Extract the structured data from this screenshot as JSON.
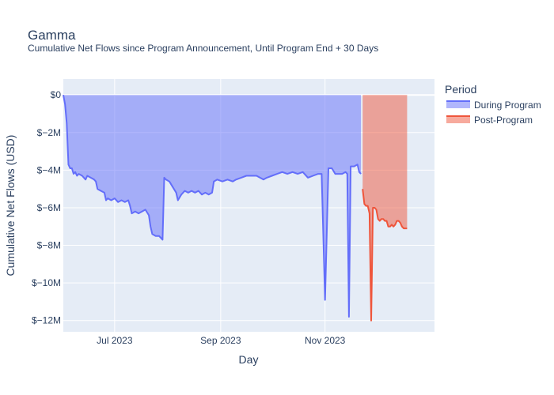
{
  "chart_data": {
    "type": "area",
    "title": "Gamma",
    "subtitle": "Cumulative Net Flows since Program Announcement, Until Program End + 30 Days",
    "xlabel": "Day",
    "ylabel": "Cumulative Net Flows (USD)",
    "x_ticks": [
      {
        "date": "2023-07-01",
        "label": "Jul 2023"
      },
      {
        "date": "2023-09-01",
        "label": "Sep 2023"
      },
      {
        "date": "2023-11-01",
        "label": "Nov 2023"
      }
    ],
    "y_ticks": [
      {
        "value": 0,
        "label": "$0"
      },
      {
        "value": -2,
        "label": "$−2M"
      },
      {
        "value": -4,
        "label": "$−4M"
      },
      {
        "value": -6,
        "label": "$−6M"
      },
      {
        "value": -8,
        "label": "$−8M"
      },
      {
        "value": -10,
        "label": "$−10M"
      },
      {
        "value": -12,
        "label": "$−12M"
      }
    ],
    "xlim": [
      "2023-06-01",
      "2024-01-04"
    ],
    "ylim": [
      -12.6,
      0.85
    ],
    "y_unit": "USD millions",
    "grid": true,
    "legend": {
      "title": "Period",
      "position": "right"
    },
    "series": [
      {
        "name": "During Program",
        "color": "#636efa",
        "fill": "#636efa",
        "points": [
          [
            "2023-06-01",
            0
          ],
          [
            "2023-06-02",
            -0.5
          ],
          [
            "2023-06-03",
            -1.5
          ],
          [
            "2023-06-04",
            -3.7
          ],
          [
            "2023-06-05",
            -3.9
          ],
          [
            "2023-06-06",
            -3.9
          ],
          [
            "2023-06-07",
            -4.2
          ],
          [
            "2023-06-08",
            -4.1
          ],
          [
            "2023-06-09",
            -4.3
          ],
          [
            "2023-06-10",
            -4.2
          ],
          [
            "2023-06-12",
            -4.3
          ],
          [
            "2023-06-14",
            -4.5
          ],
          [
            "2023-06-15",
            -4.3
          ],
          [
            "2023-06-17",
            -4.4
          ],
          [
            "2023-06-19",
            -4.5
          ],
          [
            "2023-06-20",
            -4.6
          ],
          [
            "2023-06-21",
            -5.0
          ],
          [
            "2023-06-23",
            -5.1
          ],
          [
            "2023-06-25",
            -5.2
          ],
          [
            "2023-06-26",
            -5.6
          ],
          [
            "2023-06-27",
            -5.5
          ],
          [
            "2023-06-29",
            -5.6
          ],
          [
            "2023-07-01",
            -5.5
          ],
          [
            "2023-07-03",
            -5.7
          ],
          [
            "2023-07-05",
            -5.6
          ],
          [
            "2023-07-07",
            -5.7
          ],
          [
            "2023-07-09",
            -5.6
          ],
          [
            "2023-07-10",
            -5.9
          ],
          [
            "2023-07-11",
            -6.3
          ],
          [
            "2023-07-13",
            -6.2
          ],
          [
            "2023-07-15",
            -6.3
          ],
          [
            "2023-07-17",
            -6.2
          ],
          [
            "2023-07-19",
            -6.1
          ],
          [
            "2023-07-21",
            -6.4
          ],
          [
            "2023-07-22",
            -7.0
          ],
          [
            "2023-07-23",
            -7.4
          ],
          [
            "2023-07-25",
            -7.5
          ],
          [
            "2023-07-27",
            -7.5
          ],
          [
            "2023-07-28",
            -7.6
          ],
          [
            "2023-07-29",
            -7.7
          ],
          [
            "2023-07-30",
            -4.4
          ],
          [
            "2023-07-31",
            -4.5
          ],
          [
            "2023-08-02",
            -4.6
          ],
          [
            "2023-08-04",
            -4.9
          ],
          [
            "2023-08-06",
            -5.2
          ],
          [
            "2023-08-07",
            -5.6
          ],
          [
            "2023-08-09",
            -5.3
          ],
          [
            "2023-08-11",
            -5.1
          ],
          [
            "2023-08-13",
            -5.2
          ],
          [
            "2023-08-15",
            -5.1
          ],
          [
            "2023-08-17",
            -5.2
          ],
          [
            "2023-08-19",
            -5.1
          ],
          [
            "2023-08-21",
            -5.3
          ],
          [
            "2023-08-23",
            -5.2
          ],
          [
            "2023-08-25",
            -5.3
          ],
          [
            "2023-08-27",
            -5.2
          ],
          [
            "2023-08-28",
            -4.6
          ],
          [
            "2023-08-30",
            -4.5
          ],
          [
            "2023-09-02",
            -4.6
          ],
          [
            "2023-09-05",
            -4.5
          ],
          [
            "2023-09-08",
            -4.6
          ],
          [
            "2023-09-10",
            -4.5
          ],
          [
            "2023-09-13",
            -4.4
          ],
          [
            "2023-09-16",
            -4.3
          ],
          [
            "2023-09-19",
            -4.3
          ],
          [
            "2023-09-22",
            -4.3
          ],
          [
            "2023-09-24",
            -4.4
          ],
          [
            "2023-09-26",
            -4.5
          ],
          [
            "2023-09-28",
            -4.4
          ],
          [
            "2023-10-01",
            -4.3
          ],
          [
            "2023-10-04",
            -4.2
          ],
          [
            "2023-10-07",
            -4.1
          ],
          [
            "2023-10-10",
            -4.2
          ],
          [
            "2023-10-13",
            -4.1
          ],
          [
            "2023-10-16",
            -4.2
          ],
          [
            "2023-10-19",
            -4.1
          ],
          [
            "2023-10-22",
            -4.4
          ],
          [
            "2023-10-25",
            -4.3
          ],
          [
            "2023-10-28",
            -4.2
          ],
          [
            "2023-10-30",
            -4.2
          ],
          [
            "2023-11-01",
            -10.9
          ],
          [
            "2023-11-03",
            -3.9
          ],
          [
            "2023-11-05",
            -3.9
          ],
          [
            "2023-11-07",
            -4.2
          ],
          [
            "2023-11-09",
            -4.2
          ],
          [
            "2023-11-11",
            -4.2
          ],
          [
            "2023-11-13",
            -4.1
          ],
          [
            "2023-11-14",
            -4.2
          ],
          [
            "2023-11-15",
            -11.8
          ],
          [
            "2023-11-16",
            -3.8
          ],
          [
            "2023-11-18",
            -3.8
          ],
          [
            "2023-11-20",
            -3.7
          ],
          [
            "2023-11-21",
            -4.1
          ],
          [
            "2023-11-22",
            -4.2
          ]
        ]
      },
      {
        "name": "Post-Program",
        "color": "#ef553b",
        "fill": "#ef553b",
        "points": [
          [
            "2023-11-23",
            -5.0
          ],
          [
            "2023-11-24",
            -5.8
          ],
          [
            "2023-11-25",
            -5.9
          ],
          [
            "2023-11-26",
            -5.9
          ],
          [
            "2023-11-27",
            -6.3
          ],
          [
            "2023-11-28",
            -12.0
          ],
          [
            "2023-11-29",
            -6.0
          ],
          [
            "2023-11-30",
            -6.0
          ],
          [
            "2023-12-01",
            -6.1
          ],
          [
            "2023-12-02",
            -6.6
          ],
          [
            "2023-12-03",
            -6.7
          ],
          [
            "2023-12-04",
            -6.6
          ],
          [
            "2023-12-05",
            -6.6
          ],
          [
            "2023-12-06",
            -6.7
          ],
          [
            "2023-12-07",
            -6.7
          ],
          [
            "2023-12-08",
            -7.0
          ],
          [
            "2023-12-09",
            -7.0
          ],
          [
            "2023-12-10",
            -6.9
          ],
          [
            "2023-12-11",
            -7.0
          ],
          [
            "2023-12-12",
            -6.9
          ],
          [
            "2023-12-13",
            -6.7
          ],
          [
            "2023-12-14",
            -6.7
          ],
          [
            "2023-12-15",
            -6.8
          ],
          [
            "2023-12-16",
            -7.0
          ],
          [
            "2023-12-17",
            -7.1
          ],
          [
            "2023-12-18",
            -7.1
          ],
          [
            "2023-12-19",
            -7.1
          ]
        ]
      }
    ]
  }
}
